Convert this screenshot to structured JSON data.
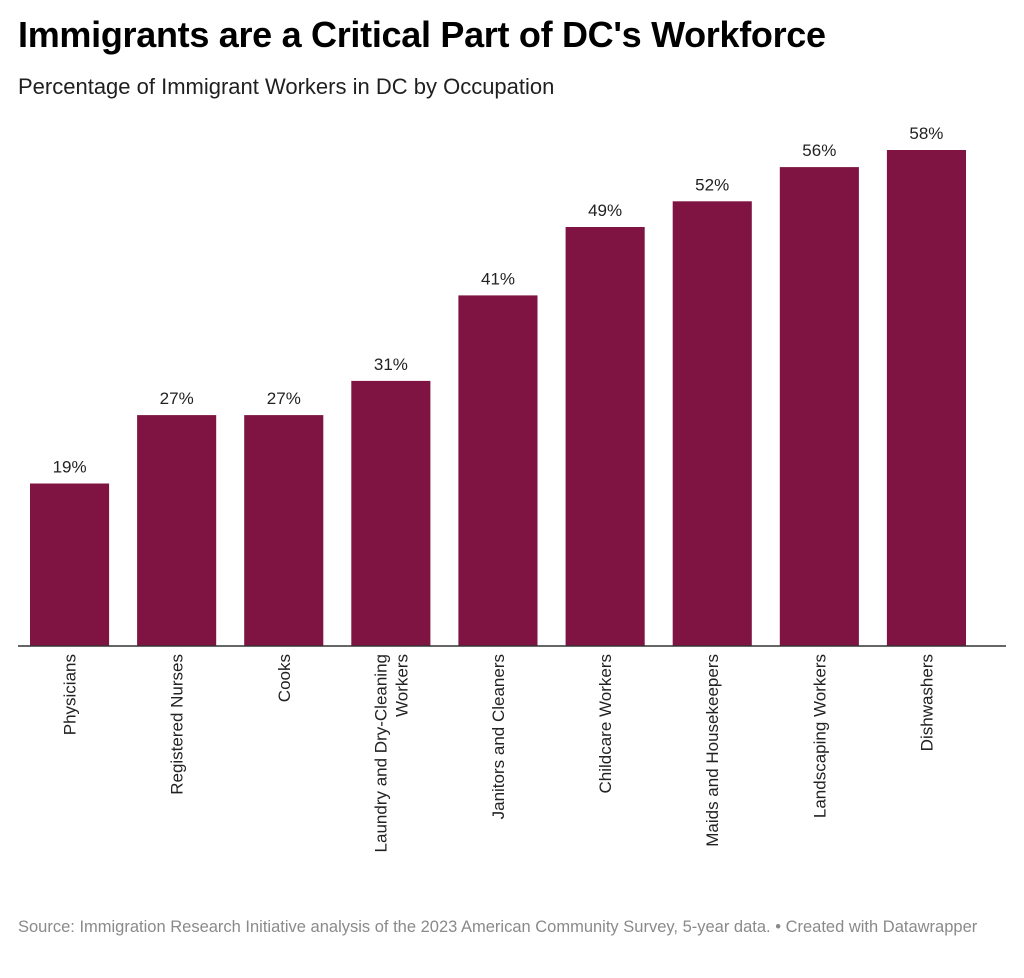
{
  "title": "Immigrants are a Critical Part of DC's Workforce",
  "subtitle": "Percentage of Immigrant Workers in DC by Occupation",
  "source": "Source: Immigration Research Initiative analysis of the 2023 American Community Survey, 5-year data. • Created with Datawrapper",
  "colors": {
    "bar": "#7f1443",
    "axis": "#333333",
    "label": "#222222"
  },
  "chart_data": {
    "type": "bar",
    "categories": [
      "Physicians",
      "Registered Nurses",
      "Cooks",
      "Laundry and Dry-Cleaning Workers",
      "Janitors and Cleaners",
      "Childcare Workers",
      "Maids and Housekeepers",
      "Landscaping Workers",
      "Dishwashers"
    ],
    "category_label_lines": [
      [
        "Physicians"
      ],
      [
        "Registered Nurses"
      ],
      [
        "Cooks"
      ],
      [
        "Laundry and Dry-Cleaning",
        "Workers"
      ],
      [
        "Janitors and Cleaners"
      ],
      [
        "Childcare Workers"
      ],
      [
        "Maids and Housekeepers"
      ],
      [
        "Landscaping Workers"
      ],
      [
        "Dishwashers"
      ]
    ],
    "values": [
      19,
      27,
      27,
      31,
      41,
      49,
      52,
      56,
      58
    ],
    "data_labels": [
      "19%",
      "27%",
      "27%",
      "31%",
      "41%",
      "49%",
      "52%",
      "56%",
      "58%"
    ],
    "unit": "%",
    "xlabel": "",
    "ylabel": "",
    "ylim": [
      0,
      58
    ],
    "grid": false,
    "legend": "none"
  }
}
